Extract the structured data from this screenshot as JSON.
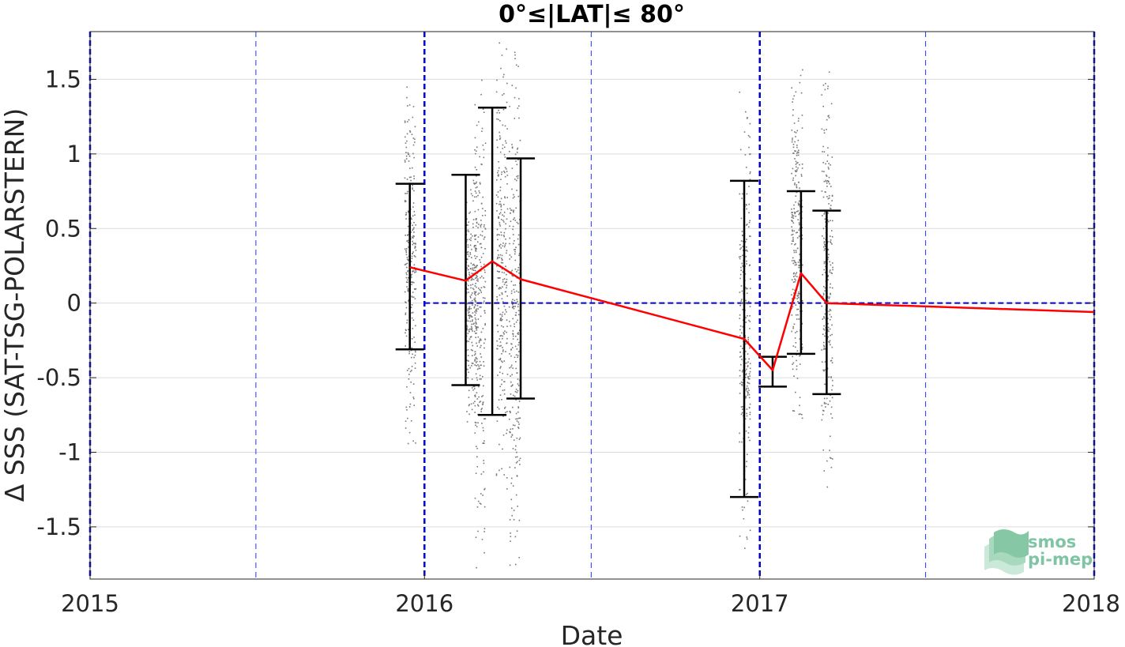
{
  "chart_data": {
    "type": "line",
    "title": "0°≤|LAT|≤ 80°",
    "xlabel": "Date",
    "ylabel": "Δ SSS (SAT-TSG-POLARSTERN)",
    "xlim": [
      "2015-01-01",
      "2018-01-01"
    ],
    "ylim": [
      -1.85,
      1.82
    ],
    "xticks": [
      "2015",
      "2016",
      "2017",
      "2018"
    ],
    "yticks": [
      {
        "value": 1.5,
        "label": "1.5"
      },
      {
        "value": 1,
        "label": "1"
      },
      {
        "value": 0.5,
        "label": "0.5"
      },
      {
        "value": 0,
        "label": "0"
      },
      {
        "value": -0.5,
        "label": "-0.5"
      },
      {
        "value": -1,
        "label": "-1"
      },
      {
        "value": -1.5,
        "label": "-1.5"
      }
    ],
    "grid": true,
    "year_lines": [
      "2015-01-01",
      "2016-01-01",
      "2017-01-01",
      "2018-01-01"
    ],
    "half_year_lines": [
      "2015-07-01",
      "2016-07-01",
      "2017-07-01"
    ],
    "reference_line": {
      "y": 0,
      "from": "2016-01-01",
      "to": "2018-01-01"
    },
    "series": [
      {
        "x": [
          "2015-12-16",
          "2016-02-15",
          "2016-03-15",
          "2016-04-15",
          "2016-12-15",
          "2017-01-15",
          "2017-02-15",
          "2017-03-15",
          "2018-01-01"
        ],
        "y": [
          0.24,
          0.15,
          0.28,
          0.16,
          -0.24,
          -0.45,
          0.2,
          0.0,
          -0.06
        ]
      }
    ],
    "error_bars": [
      {
        "x": "2015-12-16",
        "low": -0.31,
        "high": 0.8
      },
      {
        "x": "2016-02-15",
        "low": -0.55,
        "high": 0.86
      },
      {
        "x": "2016-03-15",
        "low": -0.75,
        "high": 1.31
      },
      {
        "x": "2016-04-15",
        "low": -0.64,
        "high": 0.97
      },
      {
        "x": "2016-12-15",
        "low": -1.3,
        "high": 0.82
      },
      {
        "x": "2017-01-15",
        "low": -0.56,
        "high": -0.36
      },
      {
        "x": "2017-02-15",
        "low": -0.34,
        "high": 0.75
      },
      {
        "x": "2017-03-15",
        "low": -0.61,
        "high": 0.62
      }
    ],
    "scatter_clusters": [
      {
        "x": "2015-12-16",
        "low": -1.0,
        "high": 1.52
      },
      {
        "x": "2016-02-20",
        "low": -0.82,
        "high": 0.85
      },
      {
        "x": "2016-03-01",
        "low": -1.78,
        "high": 1.62
      },
      {
        "x": "2016-03-25",
        "low": -1.25,
        "high": 1.75
      },
      {
        "x": "2016-04-08",
        "low": -1.8,
        "high": 1.7
      },
      {
        "x": "2016-12-15",
        "low": -1.65,
        "high": 1.42
      },
      {
        "x": "2017-02-10",
        "low": -0.8,
        "high": 1.62
      },
      {
        "x": "2017-03-15",
        "low": -1.25,
        "high": 1.57
      }
    ],
    "colors": {
      "mean_line": "#ff0000",
      "error_bar": "#000000",
      "year_line": "#0000cc",
      "half_year_line": "#2233ff",
      "scatter": "#777777",
      "grid": "#dcdcdc"
    }
  },
  "watermark": {
    "line1": "smos",
    "line2": "pi-mep"
  }
}
